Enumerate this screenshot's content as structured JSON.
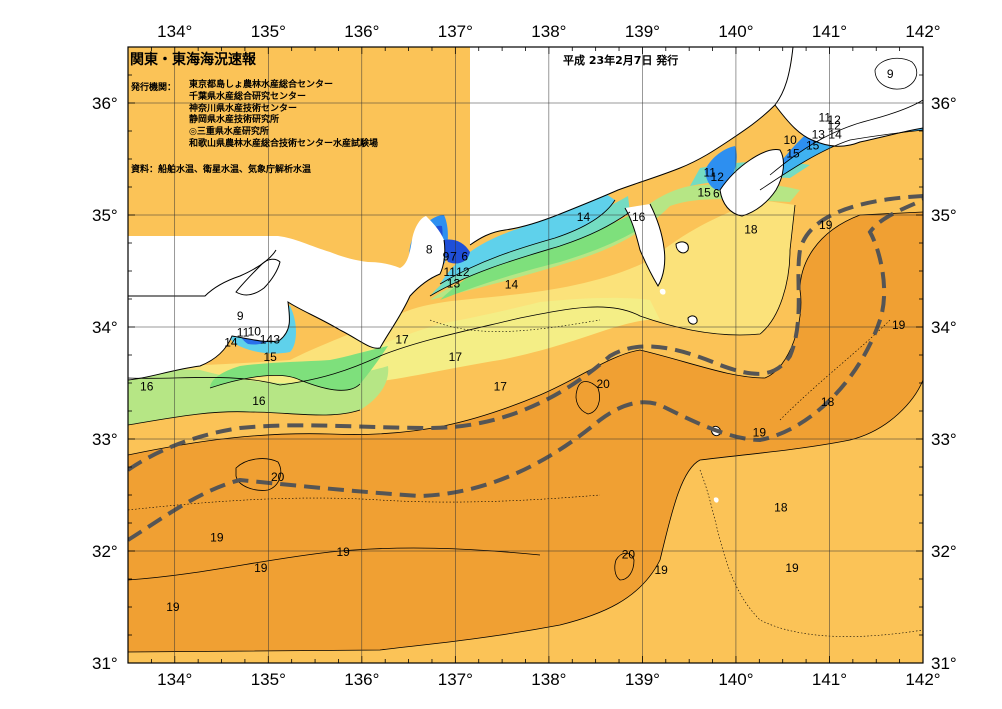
{
  "header": {
    "title": "関東・東海海況速報",
    "date": "平成 23年2月7日 発行",
    "issuer_label": "発行機関：",
    "issuers": [
      "東京都島しょ農林水産総合センター",
      "千葉県水産総合研究センター",
      "神奈川県水産技術センター",
      "静岡県水産技術研究所",
      "◎三重県水産研究所",
      "和歌山県農林水産総合技術センター水産試験場"
    ],
    "sources": "資料：船舶水温、衛星水温、気象庁解析水温"
  },
  "axes": {
    "lon_min": 133.5,
    "lon_max": 142,
    "lat_min": 31,
    "lat_max": 36.5,
    "lon_ticks": [
      134,
      135,
      136,
      137,
      138,
      139,
      140,
      141,
      142
    ],
    "lat_ticks": [
      31,
      32,
      33,
      34,
      35,
      36
    ],
    "degree_symbol": "°"
  },
  "colors": {
    "t20": "#f0a033",
    "t19": "#fbc357",
    "t18": "#fbe27a",
    "t17": "#f4ee86",
    "t16": "#b6e685",
    "t15": "#7ee07c",
    "t14": "#74dcc2",
    "t13": "#5fd1eb",
    "t12": "#3fb2f1",
    "t11": "#2d8ff0",
    "t10": "#2a6fea",
    "t9": "#1f4fd8",
    "land": "#ffffff",
    "kuroshio": "#555555"
  },
  "isotherm_labels": [
    {
      "text": "9",
      "lon": 141.65,
      "lat": 36.26
    },
    {
      "text": "11",
      "lon": 140.95,
      "lat": 35.87
    },
    {
      "text": "12",
      "lon": 141.05,
      "lat": 35.8
    },
    {
      "text": "12",
      "lon": 141.05,
      "lat": 35.85
    },
    {
      "text": "13",
      "lon": 140.88,
      "lat": 35.72
    },
    {
      "text": "14",
      "lon": 141.06,
      "lat": 35.72
    },
    {
      "text": "10",
      "lon": 140.58,
      "lat": 35.67
    },
    {
      "text": "15",
      "lon": 140.61,
      "lat": 35.55
    },
    {
      "text": "15",
      "lon": 140.82,
      "lat": 35.62
    },
    {
      "text": "11",
      "lon": 139.72,
      "lat": 35.38
    },
    {
      "text": "12",
      "lon": 139.8,
      "lat": 35.34
    },
    {
      "text": "15",
      "lon": 139.66,
      "lat": 35.2
    },
    {
      "text": "6",
      "lon": 139.79,
      "lat": 35.19
    },
    {
      "text": "14",
      "lon": 138.37,
      "lat": 34.98
    },
    {
      "text": "16",
      "lon": 138.96,
      "lat": 34.98
    },
    {
      "text": "18",
      "lon": 140.16,
      "lat": 34.87
    },
    {
      "text": "19",
      "lon": 140.96,
      "lat": 34.91
    },
    {
      "text": "19",
      "lon": 141.74,
      "lat": 34.02
    },
    {
      "text": "8",
      "lon": 136.72,
      "lat": 34.69
    },
    {
      "text": "9",
      "lon": 136.9,
      "lat": 34.63
    },
    {
      "text": "7",
      "lon": 136.98,
      "lat": 34.63
    },
    {
      "text": "6",
      "lon": 137.1,
      "lat": 34.63
    },
    {
      "text": "11",
      "lon": 136.94,
      "lat": 34.49
    },
    {
      "text": "12",
      "lon": 137.08,
      "lat": 34.49
    },
    {
      "text": "13",
      "lon": 136.98,
      "lat": 34.39
    },
    {
      "text": "14",
      "lon": 137.6,
      "lat": 34.38
    },
    {
      "text": "9",
      "lon": 134.7,
      "lat": 34.1
    },
    {
      "text": "11",
      "lon": 134.73,
      "lat": 33.95
    },
    {
      "text": "10",
      "lon": 134.85,
      "lat": 33.96
    },
    {
      "text": "14",
      "lon": 134.98,
      "lat": 33.89
    },
    {
      "text": "3",
      "lon": 135.09,
      "lat": 33.89
    },
    {
      "text": "14",
      "lon": 134.6,
      "lat": 33.86
    },
    {
      "text": "15",
      "lon": 135.02,
      "lat": 33.73
    },
    {
      "text": "17",
      "lon": 136.43,
      "lat": 33.89
    },
    {
      "text": "17",
      "lon": 137.0,
      "lat": 33.73
    },
    {
      "text": "17",
      "lon": 137.48,
      "lat": 33.47
    },
    {
      "text": "20",
      "lon": 138.58,
      "lat": 33.49
    },
    {
      "text": "16",
      "lon": 133.7,
      "lat": 33.47
    },
    {
      "text": "16",
      "lon": 134.9,
      "lat": 33.34
    },
    {
      "text": "18",
      "lon": 140.98,
      "lat": 33.33
    },
    {
      "text": "19",
      "lon": 140.25,
      "lat": 33.06
    },
    {
      "text": "20",
      "lon": 135.1,
      "lat": 32.66
    },
    {
      "text": "18",
      "lon": 140.48,
      "lat": 32.39
    },
    {
      "text": "19",
      "lon": 134.45,
      "lat": 32.12
    },
    {
      "text": "19",
      "lon": 135.8,
      "lat": 31.99
    },
    {
      "text": "19",
      "lon": 134.92,
      "lat": 31.85
    },
    {
      "text": "20",
      "lon": 138.85,
      "lat": 31.97
    },
    {
      "text": "19",
      "lon": 139.2,
      "lat": 31.83
    },
    {
      "text": "19",
      "lon": 140.6,
      "lat": 31.85
    },
    {
      "text": "19",
      "lon": 133.98,
      "lat": 31.5
    }
  ]
}
